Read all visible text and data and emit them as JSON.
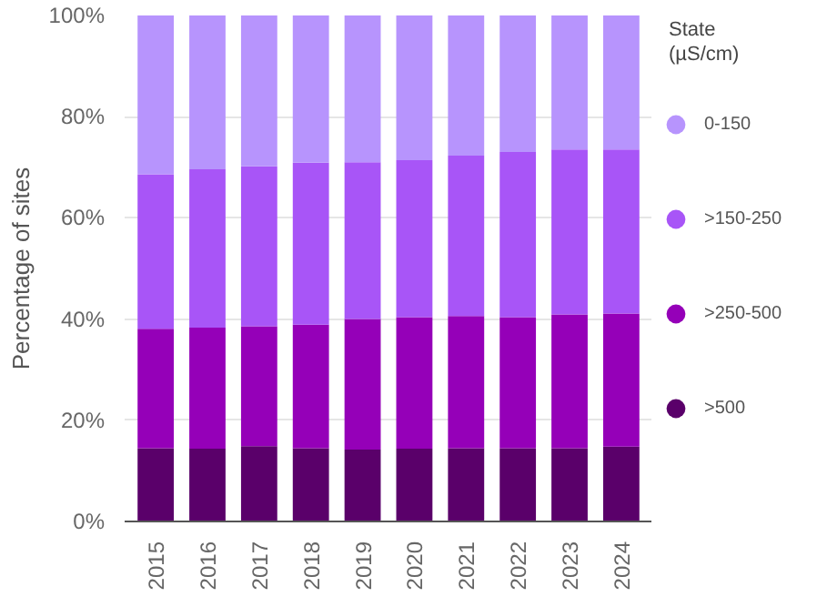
{
  "chart_data": {
    "type": "bar",
    "stacked": true,
    "ylabel": "Percentage of sites",
    "legend_title": "State (µS/cm)",
    "legend": "right",
    "grid": "y",
    "categories": [
      "2015",
      "2016",
      "2017",
      "2018",
      "2019",
      "2020",
      "2021",
      "2022",
      "2023",
      "2024"
    ],
    "series": [
      {
        "name": ">500",
        "color": "#5a006a",
        "values": [
          14.5,
          14.4,
          14.9,
          14.5,
          14.2,
          14.4,
          14.5,
          14.5,
          14.5,
          14.8
        ]
      },
      {
        "name": ">250-500",
        "color": "#9500b8",
        "values": [
          23.6,
          23.9,
          23.7,
          24.4,
          25.8,
          26.0,
          26.1,
          25.9,
          26.4,
          26.3
        ]
      },
      {
        "name": ">150-250",
        "color": "#a855f7",
        "values": [
          30.5,
          31.3,
          31.6,
          32.0,
          31.0,
          31.0,
          31.7,
          32.6,
          32.6,
          32.4
        ]
      },
      {
        "name": "0-150",
        "color": "#b794fd",
        "values": [
          31.4,
          30.4,
          29.8,
          29.1,
          29.0,
          28.6,
          27.7,
          27.0,
          26.5,
          26.5
        ]
      }
    ],
    "ylim": [
      0,
      100
    ],
    "yticks": [
      {
        "value": 0,
        "label": "0%"
      },
      {
        "value": 20,
        "label": "20%"
      },
      {
        "value": 40,
        "label": "40%"
      },
      {
        "value": 60,
        "label": "60%"
      },
      {
        "value": 80,
        "label": "80%"
      },
      {
        "value": 100,
        "label": "100%"
      }
    ]
  }
}
